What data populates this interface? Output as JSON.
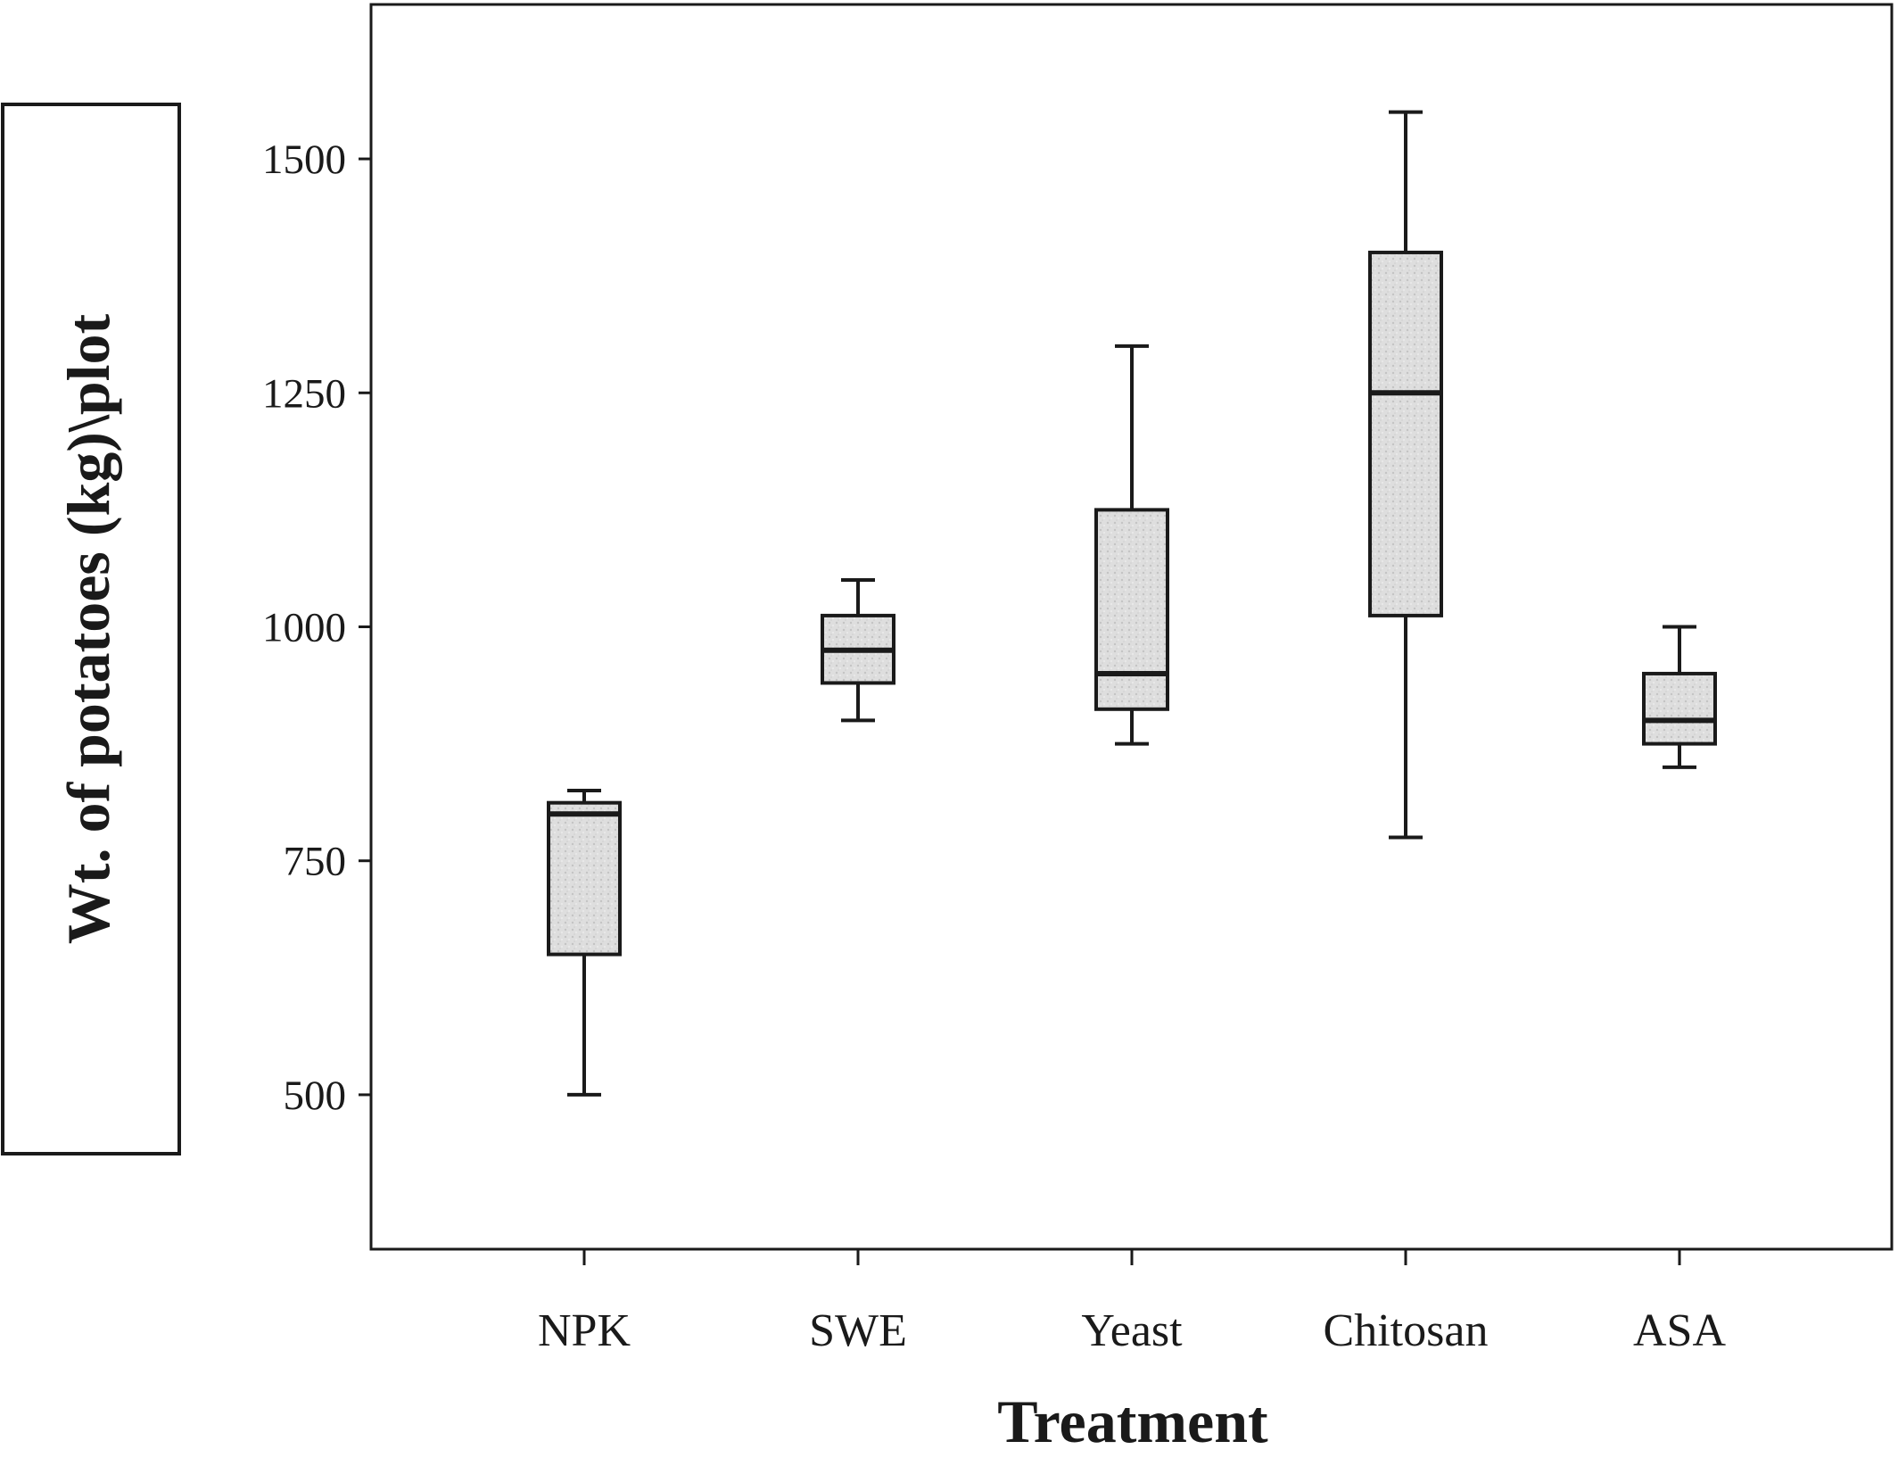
{
  "chart_data": {
    "type": "box",
    "title": "",
    "xlabel": "Treatment",
    "ylabel": "Wt. of potatoes (kg)\\plot",
    "ylim": [
      335,
      1665
    ],
    "yticks": [
      500,
      750,
      1000,
      1250,
      1500
    ],
    "ytick_labels": [
      "500",
      "750",
      "1000",
      "1250",
      "1500"
    ],
    "categories": [
      "NPK",
      "SWE",
      "Yeast",
      "Chitosan",
      "ASA"
    ],
    "boxes": [
      {
        "category": "NPK",
        "min": 500,
        "q1": 650,
        "median": 800,
        "q3": 812,
        "max": 825
      },
      {
        "category": "SWE",
        "min": 900,
        "q1": 940,
        "median": 975,
        "q3": 1012,
        "max": 1050
      },
      {
        "category": "Yeast",
        "min": 875,
        "q1": 912,
        "median": 950,
        "q3": 1125,
        "max": 1300
      },
      {
        "category": "Chitosan",
        "min": 775,
        "q1": 1012,
        "median": 1250,
        "q3": 1400,
        "max": 1550
      },
      {
        "category": "ASA",
        "min": 850,
        "q1": 875,
        "median": 900,
        "q3": 950,
        "max": 1000
      }
    ],
    "grid": false,
    "legend": "none",
    "colors": {
      "box_fill": "#dcdcdc",
      "stroke": "#1a1a1a"
    }
  }
}
